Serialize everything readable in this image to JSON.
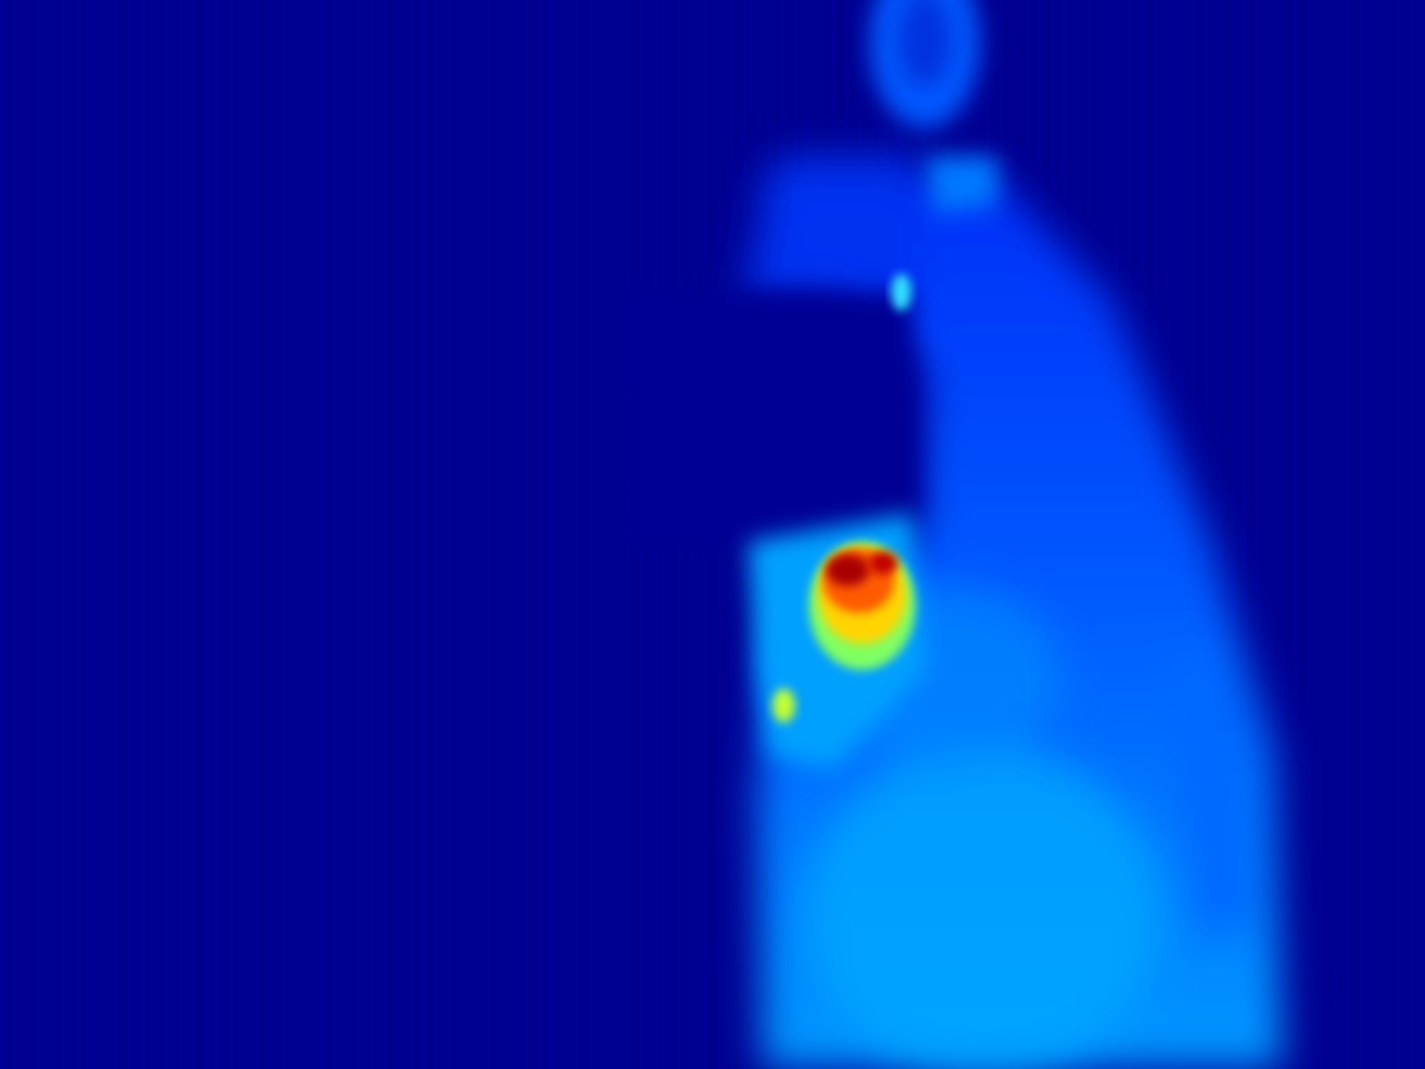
{
  "image": {
    "kind": "thermal-infrared-photo",
    "colormap": "jet",
    "palette": {
      "background": "#00008f",
      "cold": "#0010d8",
      "cool": "#0038ff",
      "mild": "#0070ff",
      "warm": "#00b4ff",
      "hot": "#ffd400",
      "hotter": "#ff5a00",
      "hottest": "#a80000"
    }
  }
}
